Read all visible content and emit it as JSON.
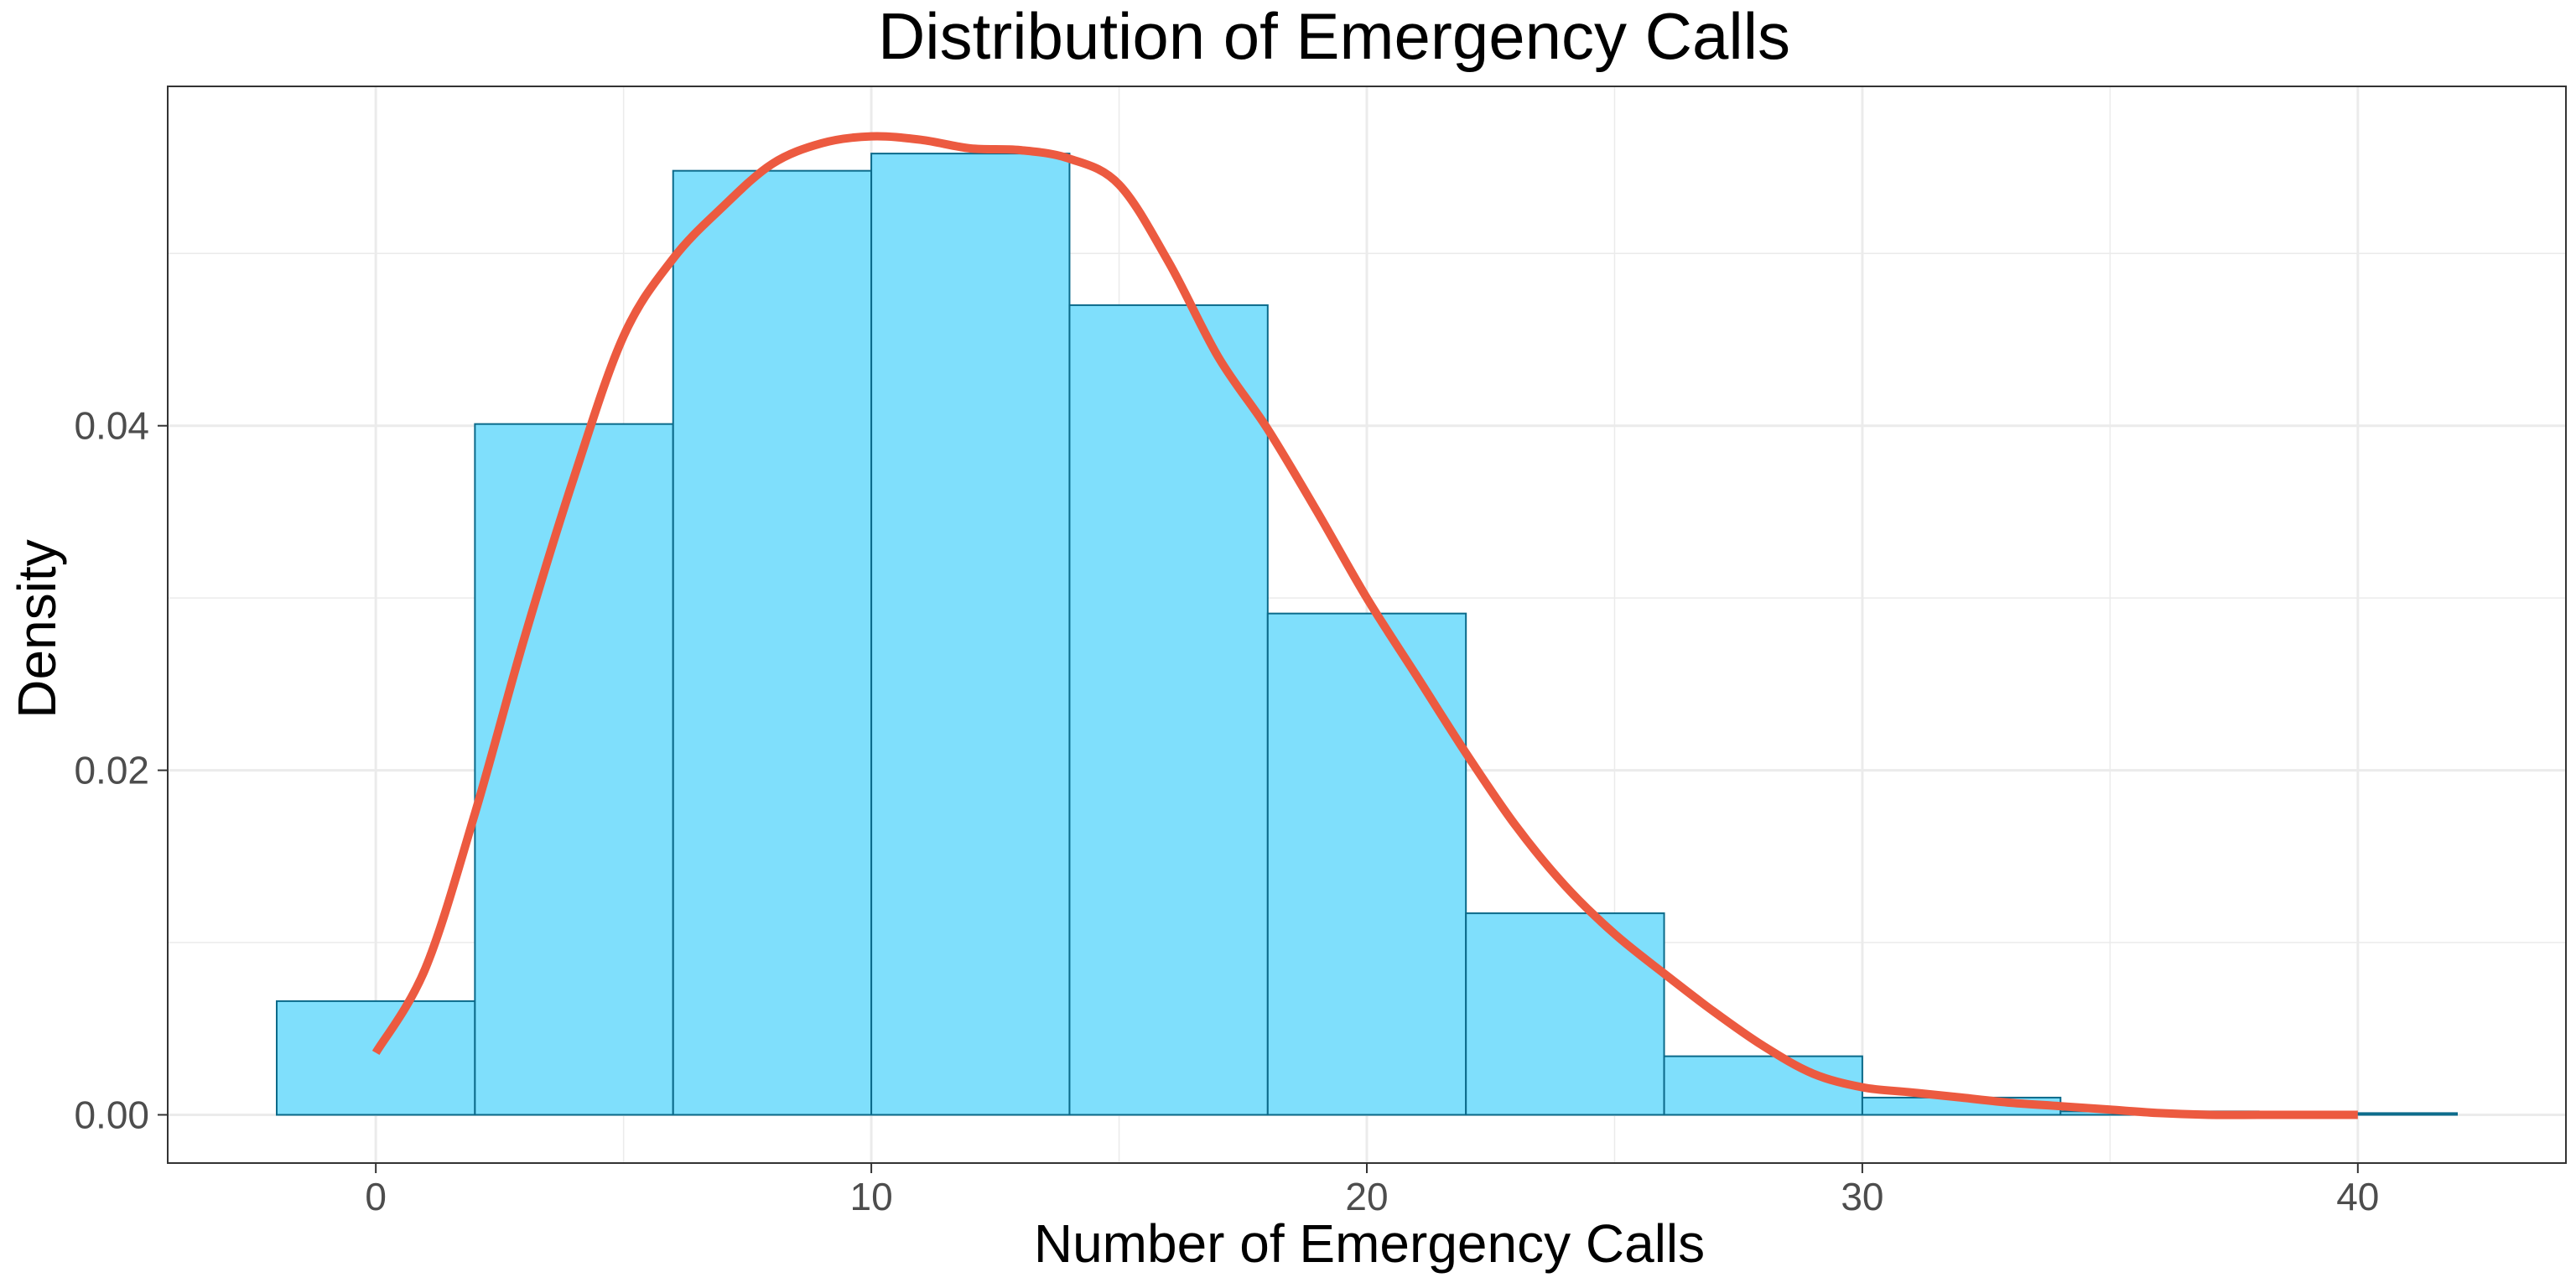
{
  "chart_data": {
    "type": "bar",
    "title": "Distribution of Emergency Calls",
    "xlabel": "Number of Emergency Calls",
    "ylabel": "Density",
    "xlim": [
      -4.2,
      44.2
    ],
    "ylim": [
      -0.0028,
      0.0597
    ],
    "x_ticks": [
      0,
      10,
      20,
      30,
      40
    ],
    "x_tick_labels": [
      "0",
      "10",
      "20",
      "30",
      "40"
    ],
    "y_ticks": [
      0.0,
      0.02,
      0.04
    ],
    "y_tick_labels": [
      "0.00",
      "0.02",
      "0.04"
    ],
    "grid": true,
    "bins": [
      {
        "x0": -2,
        "x1": 2,
        "value": 0.0066
      },
      {
        "x0": 2,
        "x1": 6,
        "value": 0.0401
      },
      {
        "x0": 6,
        "x1": 10,
        "value": 0.0548
      },
      {
        "x0": 10,
        "x1": 14,
        "value": 0.0558
      },
      {
        "x0": 14,
        "x1": 18,
        "value": 0.047
      },
      {
        "x0": 18,
        "x1": 22,
        "value": 0.0291
      },
      {
        "x0": 22,
        "x1": 26,
        "value": 0.0117
      },
      {
        "x0": 26,
        "x1": 30,
        "value": 0.0034
      },
      {
        "x0": 30,
        "x1": 34,
        "value": 0.001
      },
      {
        "x0": 34,
        "x1": 38,
        "value": 0.0002
      },
      {
        "x0": 38,
        "x1": 42,
        "value": 0.0001
      }
    ],
    "density_curve": {
      "x": [
        0,
        1,
        2,
        3,
        4,
        5,
        6,
        7,
        8,
        9,
        10,
        11,
        12,
        13,
        14,
        15,
        16,
        17,
        18,
        19,
        20,
        21,
        22,
        23,
        24,
        25,
        26,
        27,
        28,
        29,
        30,
        31,
        32,
        33,
        34,
        35,
        36,
        37,
        38,
        39,
        40
      ],
      "y": [
        0.0036,
        0.0085,
        0.0175,
        0.0277,
        0.037,
        0.0452,
        0.0497,
        0.0527,
        0.0552,
        0.0564,
        0.0568,
        0.0566,
        0.0561,
        0.056,
        0.0555,
        0.054,
        0.0495,
        0.044,
        0.0398,
        0.035,
        0.03,
        0.0255,
        0.021,
        0.0168,
        0.0133,
        0.0105,
        0.0082,
        0.006,
        0.004,
        0.0024,
        0.0016,
        0.0013,
        0.001,
        0.0007,
        0.0005,
        0.0003,
        0.0001,
        0.0,
        0.0,
        0.0,
        0.0
      ]
    },
    "colors": {
      "bar_fill": "#7fdffc",
      "bar_stroke": "#0b6a8a",
      "curve": "#ec5a40",
      "grid": "#ebebeb",
      "panel_border": "#333333",
      "tick_label": "#4d4d4d"
    }
  }
}
